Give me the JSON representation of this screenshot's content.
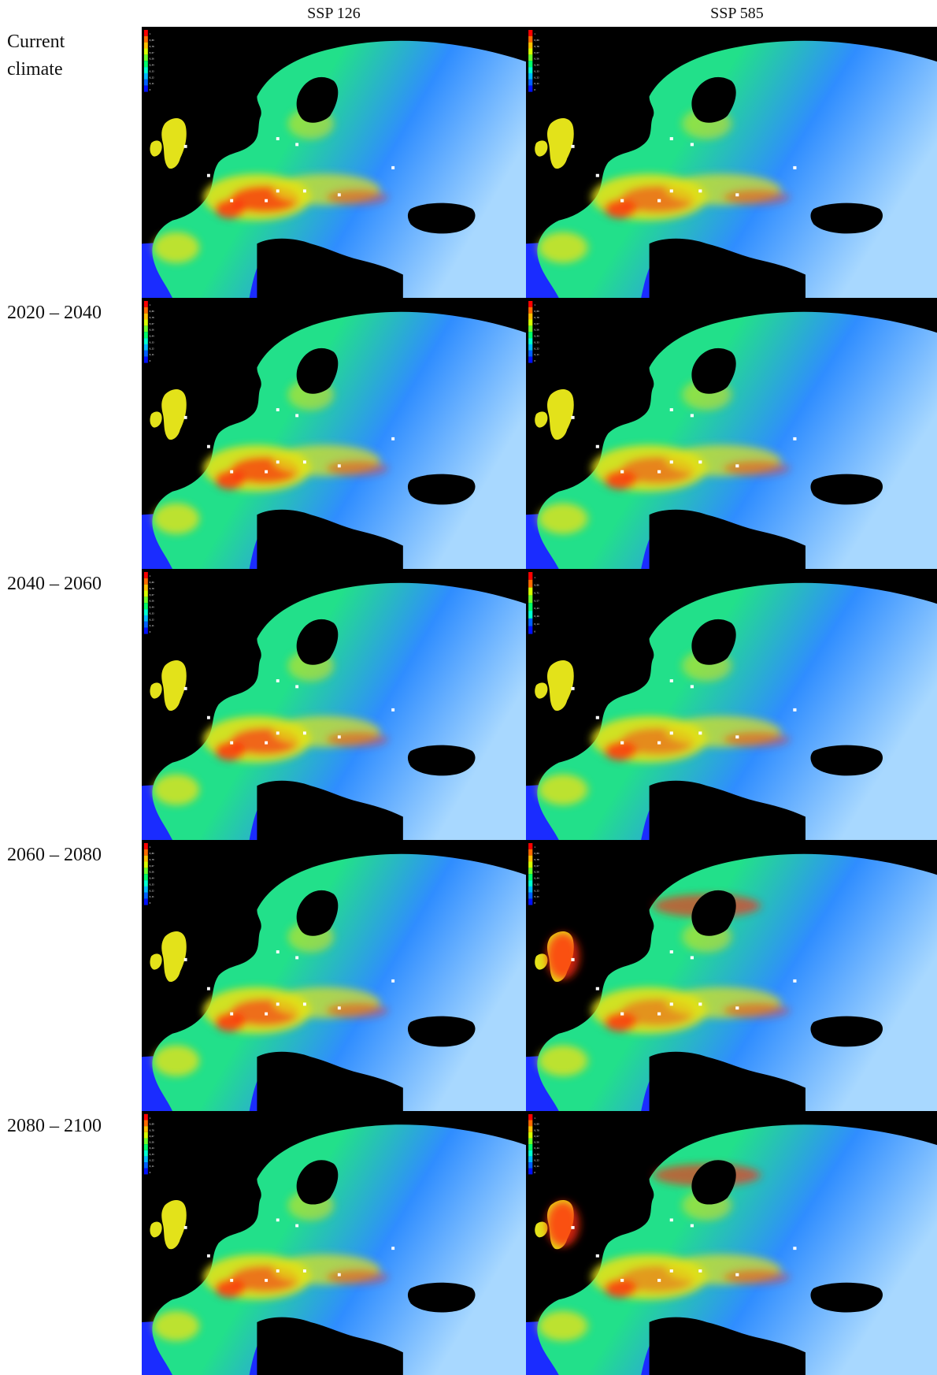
{
  "columns": [
    {
      "label": "SSP 126"
    },
    {
      "label": "SSP 585"
    }
  ],
  "rows": [
    {
      "label": "Current\nclimate",
      "panels": [
        {
          "legend": [
            "1",
            "0,89",
            "0,78",
            "0,67",
            "0,56",
            "0,44",
            "0,33",
            "0,22",
            "0,11",
            "0"
          ]
        },
        {
          "legend": [
            "1",
            "0,89",
            "0,78",
            "0,67",
            "0,56",
            "0,44",
            "0,33",
            "0,22",
            "0,11",
            "0"
          ]
        }
      ]
    },
    {
      "label": "2020 – 2040",
      "panels": [
        {
          "legend": [
            "1",
            "0,89",
            "0,78",
            "0,67",
            "0,56",
            "0,44",
            "0,33",
            "0,22",
            "0,11",
            "0"
          ]
        },
        {
          "legend": [
            "1",
            "0,89",
            "0,78",
            "0,67",
            "0,56",
            "0,44",
            "0,33",
            "0,22",
            "0,11",
            "0"
          ]
        }
      ]
    },
    {
      "label": "2040 – 2060",
      "panels": [
        {
          "legend": [
            "1",
            "0,89",
            "0,78",
            "0,67",
            "0,56",
            "0,44",
            "0,33",
            "0,22",
            "0,11",
            "0"
          ]
        },
        {
          "legend": [
            "1",
            "0,86",
            "0,71",
            "0,57",
            "0,43",
            "0,29",
            "0,14",
            "0"
          ]
        }
      ]
    },
    {
      "label": "2060 – 2080",
      "panels": [
        {
          "legend": [
            "1",
            "0,89",
            "0,78",
            "0,67",
            "0,56",
            "0,44",
            "0,33",
            "0,22",
            "0,11",
            "0"
          ]
        },
        {
          "legend": [
            "1",
            "0,89",
            "0,78",
            "0,67",
            "0,56",
            "0,44",
            "0,33",
            "0,22",
            "0,11",
            "0"
          ]
        }
      ]
    },
    {
      "label": "2080 – 2100",
      "panels": [
        {
          "legend": [
            "1",
            "0,89",
            "0,78",
            "0,67",
            "0,56",
            "0,44",
            "0,33",
            "0,22",
            "0,11",
            "0"
          ]
        },
        {
          "legend": [
            "1",
            "0,89",
            "0,78",
            "0,67",
            "0,56",
            "0,44",
            "0,33",
            "0,22",
            "0,11",
            "0"
          ]
        }
      ]
    }
  ],
  "colors": {
    "sea": "#1a2cff",
    "background": "#000000",
    "land_low": "#2f8dff",
    "land_mid": "#22e08a",
    "land_high": "#e3e21a",
    "land_hot": "#ff2a10",
    "water_body": "#000000"
  }
}
